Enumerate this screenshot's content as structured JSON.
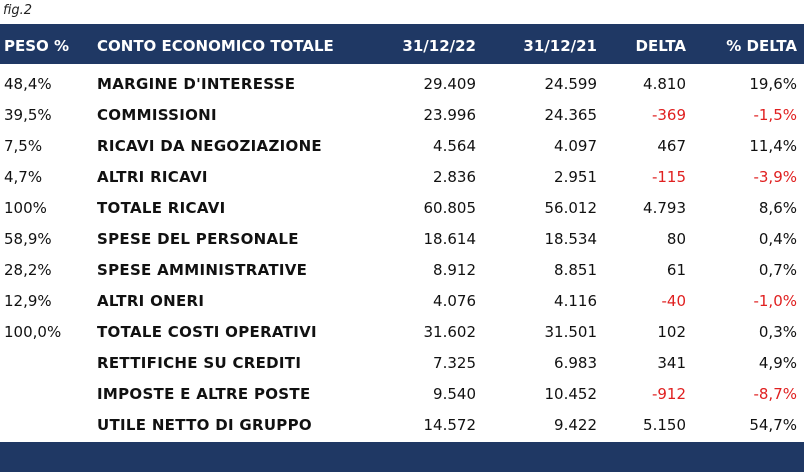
{
  "caption": "fig.2",
  "table": {
    "header": [
      "PESO %",
      "CONTO ECONOMICO TOTALE",
      "31/12/22",
      "31/12/21",
      "DELTA",
      "% DELTA"
    ],
    "rows": [
      [
        "48,4%",
        "MARGINE D'INTERESSE",
        "29.409",
        "24.599",
        "4.810",
        "19,6%"
      ],
      [
        "39,5%",
        "COMMISSIONI",
        "23.996",
        "24.365",
        "-369",
        "-1,5%"
      ],
      [
        "7,5%",
        "RICAVI DA NEGOZIAZIONE",
        "4.564",
        "4.097",
        "467",
        "11,4%"
      ],
      [
        "4,7%",
        "ALTRI RICAVI",
        "2.836",
        "2.951",
        "-115",
        "-3,9%"
      ],
      [
        "100%",
        "TOTALE RICAVI",
        "60.805",
        "56.012",
        "4.793",
        "8,6%"
      ],
      [
        "58,9%",
        "SPESE DEL PERSONALE",
        "18.614",
        "18.534",
        "80",
        "0,4%"
      ],
      [
        "28,2%",
        "SPESE AMMINISTRATIVE",
        "8.912",
        "8.851",
        "61",
        "0,7%"
      ],
      [
        "12,9%",
        "ALTRI ONERI",
        "4.076",
        "4.116",
        "-40",
        "-1,0%"
      ],
      [
        "100,0%",
        "TOTALE COSTI OPERATIVI",
        "31.602",
        "31.501",
        "102",
        "0,3%"
      ],
      [
        null,
        "RETTIFICHE SU CREDITI",
        "7.325",
        "6.983",
        "341",
        "4,9%"
      ],
      [
        null,
        "IMPOSTE E ALTRE POSTE",
        "9.540",
        "10.452",
        "-912",
        "-8,7%"
      ],
      [
        null,
        "UTILE NETTO DI GRUPPO",
        "14.572",
        "9.422",
        "5.150",
        "54,7%"
      ]
    ]
  }
}
